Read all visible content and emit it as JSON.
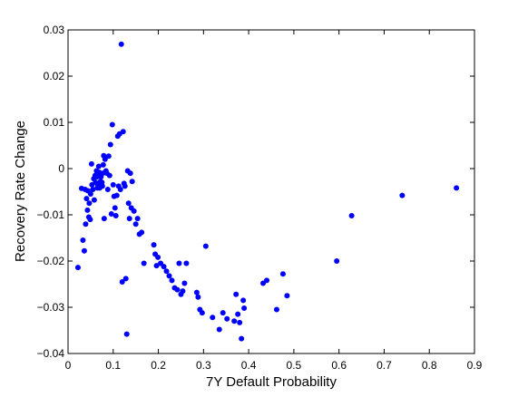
{
  "chart_data": {
    "type": "scatter",
    "xlabel": "7Y Default Probability",
    "ylabel": "Recovery Rate Change",
    "xlim": [
      0,
      0.9
    ],
    "ylim": [
      -0.04,
      0.03
    ],
    "x_ticks": [
      0,
      0.1,
      0.2,
      0.3,
      0.4,
      0.5,
      0.6,
      0.7,
      0.8,
      0.9
    ],
    "x_tick_labels": [
      "0",
      "0.1",
      "0.2",
      "0.3",
      "0.4",
      "0.5",
      "0.6",
      "0.7",
      "0.8",
      "0.9"
    ],
    "y_ticks": [
      -0.04,
      -0.03,
      -0.02,
      -0.01,
      0,
      0.01,
      0.02,
      0.03
    ],
    "y_tick_labels": [
      "−0.04",
      "−0.03",
      "−0.02",
      "−0.01",
      "0",
      "0.01",
      "0.02",
      "0.03"
    ],
    "grid": false,
    "box": true,
    "marker_color": "#0000ff",
    "series": [
      {
        "points": [
          [
            0.022,
            -0.0214
          ],
          [
            0.03,
            -0.0043
          ],
          [
            0.033,
            -0.0155
          ],
          [
            0.036,
            -0.0178
          ],
          [
            0.038,
            -0.0045
          ],
          [
            0.039,
            -0.012
          ],
          [
            0.041,
            -0.0065
          ],
          [
            0.043,
            -0.009
          ],
          [
            0.044,
            -0.0048
          ],
          [
            0.046,
            -0.0105
          ],
          [
            0.047,
            -0.0075
          ],
          [
            0.049,
            -0.011
          ],
          [
            0.05,
            -0.0055
          ],
          [
            0.052,
            0.001
          ],
          [
            0.053,
            -0.0035
          ],
          [
            0.055,
            -0.0045
          ],
          [
            0.057,
            -0.0022
          ],
          [
            0.058,
            -0.0068
          ],
          [
            0.06,
            -0.0015
          ],
          [
            0.061,
            -0.003
          ],
          [
            0.063,
            -0.0005
          ],
          [
            0.064,
            -0.0018
          ],
          [
            0.065,
            -0.0042
          ],
          [
            0.066,
            -0.0035
          ],
          [
            0.068,
            0.0005
          ],
          [
            0.069,
            -0.0008
          ],
          [
            0.07,
            -0.0042
          ],
          [
            0.071,
            -0.0012
          ],
          [
            0.072,
            -0.0028
          ],
          [
            0.073,
            -0.0018
          ],
          [
            0.075,
            -0.003
          ],
          [
            0.076,
            -0.0038
          ],
          [
            0.077,
            -0.001
          ],
          [
            0.078,
            0.0008
          ],
          [
            0.079,
            0.0028
          ],
          [
            0.08,
            -0.0108
          ],
          [
            0.082,
            0.002
          ],
          [
            0.084,
            -0.0005
          ],
          [
            0.086,
            -0.001
          ],
          [
            0.088,
            -0.0045
          ],
          [
            0.09,
            0.0027
          ],
          [
            0.092,
            -0.0015
          ],
          [
            0.094,
            0.0052
          ],
          [
            0.096,
            -0.0098
          ],
          [
            0.098,
            0.0095
          ],
          [
            0.1,
            -0.0035
          ],
          [
            0.102,
            -0.006
          ],
          [
            0.104,
            -0.0085
          ],
          [
            0.106,
            -0.0102
          ],
          [
            0.108,
            -0.0058
          ],
          [
            0.11,
            0.007
          ],
          [
            0.112,
            -0.0038
          ],
          [
            0.114,
            0.0075
          ],
          [
            0.116,
            -0.0045
          ],
          [
            0.118,
            0.0269
          ],
          [
            0.12,
            -0.0245
          ],
          [
            0.122,
            0.008
          ],
          [
            0.124,
            -0.0032
          ],
          [
            0.126,
            -0.0038
          ],
          [
            0.128,
            -0.0238
          ],
          [
            0.13,
            -0.0358
          ],
          [
            0.132,
            -0.0005
          ],
          [
            0.134,
            -0.0075
          ],
          [
            0.136,
            -0.0108
          ],
          [
            0.138,
            -0.001
          ],
          [
            0.14,
            -0.0085
          ],
          [
            0.142,
            -0.0028
          ],
          [
            0.146,
            -0.0092
          ],
          [
            0.15,
            -0.012
          ],
          [
            0.154,
            -0.0108
          ],
          [
            0.158,
            -0.0142
          ],
          [
            0.163,
            -0.0138
          ],
          [
            0.168,
            -0.0205
          ],
          [
            0.19,
            -0.0165
          ],
          [
            0.193,
            -0.0185
          ],
          [
            0.196,
            -0.021
          ],
          [
            0.199,
            -0.0192
          ],
          [
            0.205,
            -0.0205
          ],
          [
            0.212,
            -0.0212
          ],
          [
            0.218,
            -0.0222
          ],
          [
            0.224,
            -0.0232
          ],
          [
            0.23,
            -0.0242
          ],
          [
            0.236,
            -0.0258
          ],
          [
            0.242,
            -0.0262
          ],
          [
            0.246,
            -0.0205
          ],
          [
            0.25,
            -0.0272
          ],
          [
            0.254,
            -0.0265
          ],
          [
            0.258,
            -0.0248
          ],
          [
            0.262,
            -0.0205
          ],
          [
            0.285,
            -0.0268
          ],
          [
            0.288,
            -0.0278
          ],
          [
            0.292,
            -0.0305
          ],
          [
            0.297,
            -0.0312
          ],
          [
            0.305,
            -0.0168
          ],
          [
            0.32,
            -0.0322
          ],
          [
            0.335,
            -0.0348
          ],
          [
            0.343,
            -0.0312
          ],
          [
            0.352,
            -0.0325
          ],
          [
            0.368,
            -0.033
          ],
          [
            0.372,
            -0.0272
          ],
          [
            0.376,
            -0.0315
          ],
          [
            0.38,
            -0.0333
          ],
          [
            0.384,
            -0.0368
          ],
          [
            0.388,
            -0.0285
          ],
          [
            0.39,
            -0.0302
          ],
          [
            0.432,
            -0.0248
          ],
          [
            0.44,
            -0.0242
          ],
          [
            0.462,
            -0.0305
          ],
          [
            0.476,
            -0.0228
          ],
          [
            0.485,
            -0.0275
          ],
          [
            0.595,
            -0.02
          ],
          [
            0.628,
            -0.0102
          ],
          [
            0.74,
            -0.0058
          ],
          [
            0.86,
            -0.0042
          ]
        ]
      }
    ]
  }
}
